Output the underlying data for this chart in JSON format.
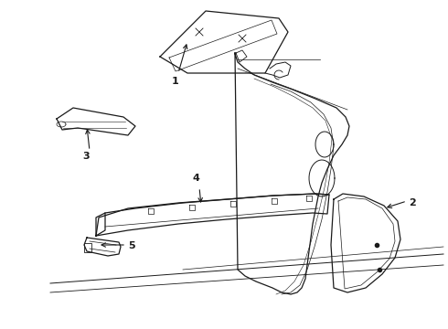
{
  "bg_color": "#ffffff",
  "line_color": "#1a1a1a",
  "lw": 0.9,
  "figsize": [
    4.9,
    3.6
  ],
  "dpi": 100,
  "xlim": [
    0,
    490
  ],
  "ylim": [
    0,
    360
  ]
}
